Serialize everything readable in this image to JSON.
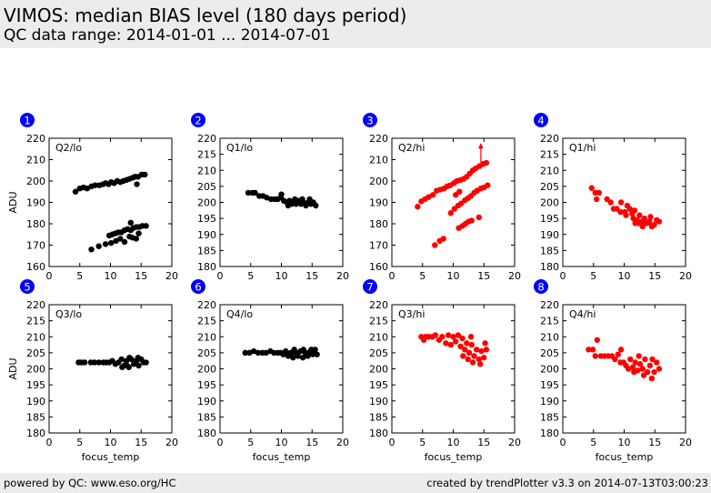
{
  "header": {
    "title": "VIMOS: median BIAS level (180 days period)",
    "subtitle": "QC data range: 2014-01-01 ... 2014-07-01"
  },
  "footer": {
    "left": "powered by QC: www.eso.org/HC",
    "right": "created by trendPlotter v3.3 on 2014-07-13T03:00:23"
  },
  "colors": {
    "black_series": "#000000",
    "red_series": "#ff0000",
    "badge": "#0000ff"
  },
  "chart_data": [
    {
      "type": "scatter",
      "number": "1",
      "label": "Q2/lo",
      "color": "black",
      "xlabel": "",
      "ylabel": "ADU",
      "xlim": [
        0,
        20
      ],
      "ylim": [
        160,
        220
      ],
      "xticks": [
        0,
        5,
        10,
        15,
        20
      ],
      "yticks": [
        160,
        170,
        180,
        190,
        200,
        210,
        220
      ],
      "points": [
        [
          4.3,
          195
        ],
        [
          5,
          196.5
        ],
        [
          5.6,
          197
        ],
        [
          6.2,
          196.5
        ],
        [
          6.9,
          197.5
        ],
        [
          7.5,
          198
        ],
        [
          8.2,
          198
        ],
        [
          8.8,
          198.5
        ],
        [
          9.2,
          199
        ],
        [
          9.7,
          198.5
        ],
        [
          10.1,
          199.5
        ],
        [
          10.6,
          199
        ],
        [
          11.1,
          200
        ],
        [
          11.6,
          199.5
        ],
        [
          12.1,
          200
        ],
        [
          12.6,
          200.5
        ],
        [
          13.1,
          201
        ],
        [
          13.6,
          201.5
        ],
        [
          14,
          202
        ],
        [
          14.5,
          202
        ],
        [
          15.1,
          203
        ],
        [
          15.6,
          203
        ],
        [
          14.3,
          198.5
        ],
        [
          6.9,
          168
        ],
        [
          8.1,
          169.5
        ],
        [
          9.2,
          170.5
        ],
        [
          10.1,
          171
        ],
        [
          10.9,
          172
        ],
        [
          11.6,
          173
        ],
        [
          12.3,
          171.5
        ],
        [
          13.1,
          174
        ],
        [
          13.6,
          173.5
        ],
        [
          14.2,
          173
        ],
        [
          14.6,
          175.5
        ],
        [
          9.8,
          174.5
        ],
        [
          10.3,
          175
        ],
        [
          10.8,
          175.5
        ],
        [
          11.3,
          176
        ],
        [
          11.8,
          176
        ],
        [
          12.3,
          177
        ],
        [
          12.8,
          177.5
        ],
        [
          13.3,
          177
        ],
        [
          13.7,
          178
        ],
        [
          14.2,
          178.5
        ],
        [
          14.7,
          178.5
        ],
        [
          15.2,
          179
        ],
        [
          15.8,
          179
        ],
        [
          13.3,
          180.5
        ]
      ]
    },
    {
      "type": "scatter",
      "number": "2",
      "label": "Q1/lo",
      "color": "black",
      "xlabel": "",
      "ylabel": "",
      "xlim": [
        0,
        20
      ],
      "ylim": [
        180,
        220
      ],
      "xticks": [
        0,
        5,
        10,
        15,
        20
      ],
      "yticks": [
        180,
        185,
        190,
        195,
        200,
        205,
        210,
        215,
        220
      ],
      "points": [
        [
          4.6,
          203
        ],
        [
          5.3,
          203
        ],
        [
          5.7,
          203
        ],
        [
          6.4,
          202
        ],
        [
          7,
          202
        ],
        [
          7.6,
          201.5
        ],
        [
          8.3,
          201
        ],
        [
          8.9,
          201
        ],
        [
          9.4,
          201
        ],
        [
          9.9,
          201.5
        ],
        [
          10,
          202.5
        ],
        [
          10.4,
          200.5
        ],
        [
          10.9,
          200
        ],
        [
          11.3,
          200.5
        ],
        [
          11.7,
          199.5
        ],
        [
          12,
          200.5
        ],
        [
          12.4,
          199.5
        ],
        [
          12.8,
          200.5
        ],
        [
          13.2,
          199.5
        ],
        [
          13.6,
          200
        ],
        [
          14,
          199
        ],
        [
          14.4,
          200
        ],
        [
          14.8,
          199.5
        ],
        [
          15.2,
          200
        ],
        [
          15.6,
          199
        ],
        [
          11.1,
          199
        ],
        [
          12.2,
          201
        ],
        [
          13.4,
          201
        ],
        [
          14.6,
          201
        ]
      ]
    },
    {
      "type": "scatter",
      "number": "3",
      "label": "Q2/hi",
      "color": "red",
      "xlabel": "",
      "ylabel": "",
      "xlim": [
        0,
        20
      ],
      "ylim": [
        160,
        220
      ],
      "xticks": [
        0,
        5,
        10,
        15,
        20
      ],
      "yticks": [
        160,
        170,
        180,
        190,
        200,
        210,
        220
      ],
      "annotation": "up-arrow at x=14.5",
      "points": [
        [
          4.2,
          188
        ],
        [
          4.8,
          190.5
        ],
        [
          5.4,
          191.5
        ],
        [
          6,
          192.5
        ],
        [
          6.7,
          193.5
        ],
        [
          7.3,
          195.5
        ],
        [
          7.9,
          196
        ],
        [
          8.5,
          196.5
        ],
        [
          9,
          197.5
        ],
        [
          9.5,
          198
        ],
        [
          10.1,
          199
        ],
        [
          10.6,
          200
        ],
        [
          11.2,
          200.5
        ],
        [
          11.7,
          201
        ],
        [
          12.2,
          202
        ],
        [
          12.7,
          203.5
        ],
        [
          13.2,
          205
        ],
        [
          13.7,
          206
        ],
        [
          14.3,
          207
        ],
        [
          14.9,
          208
        ],
        [
          15.4,
          208.5
        ],
        [
          9.6,
          185
        ],
        [
          10.2,
          187
        ],
        [
          10.8,
          188.5
        ],
        [
          11.3,
          189.5
        ],
        [
          11.9,
          191
        ],
        [
          12.4,
          192
        ],
        [
          12.9,
          193
        ],
        [
          13.4,
          194.5
        ],
        [
          13.9,
          195.5
        ],
        [
          14.5,
          196.5
        ],
        [
          15,
          197
        ],
        [
          15.6,
          198
        ],
        [
          7,
          170
        ],
        [
          7.8,
          172
        ],
        [
          8.4,
          173
        ],
        [
          10.9,
          178
        ],
        [
          11.5,
          179
        ],
        [
          12,
          180
        ],
        [
          12.5,
          181
        ],
        [
          13,
          181.5
        ],
        [
          14.2,
          183
        ],
        [
          10.4,
          193.5
        ],
        [
          11,
          195
        ]
      ]
    },
    {
      "type": "scatter",
      "number": "4",
      "label": "Q1/hi",
      "color": "red",
      "xlabel": "",
      "ylabel": "",
      "xlim": [
        0,
        20
      ],
      "ylim": [
        180,
        220
      ],
      "xticks": [
        0,
        5,
        10,
        15,
        20
      ],
      "yticks": [
        180,
        185,
        190,
        195,
        200,
        205,
        210,
        215,
        220
      ],
      "points": [
        [
          4.7,
          204.5
        ],
        [
          5.3,
          203
        ],
        [
          5.9,
          203
        ],
        [
          5.5,
          201
        ],
        [
          7.2,
          201
        ],
        [
          7.8,
          200
        ],
        [
          8.3,
          198
        ],
        [
          8.8,
          198
        ],
        [
          9.5,
          200
        ],
        [
          9.4,
          197
        ],
        [
          10.1,
          197
        ],
        [
          10.5,
          199
        ],
        [
          10.9,
          198
        ],
        [
          11.3,
          196.5
        ],
        [
          11.7,
          197.5
        ],
        [
          11.5,
          195
        ],
        [
          12.1,
          194.5
        ],
        [
          12.5,
          196
        ],
        [
          12.9,
          194
        ],
        [
          13.3,
          195
        ],
        [
          13.7,
          193.5
        ],
        [
          14.1,
          194
        ],
        [
          14.5,
          192.5
        ],
        [
          14.9,
          193
        ],
        [
          15.3,
          194.5
        ],
        [
          15.7,
          194
        ],
        [
          13,
          192.5
        ],
        [
          12.3,
          193.5
        ],
        [
          14.3,
          195.5
        ],
        [
          10.3,
          196
        ],
        [
          11.8,
          193.5
        ]
      ]
    },
    {
      "type": "scatter",
      "number": "5",
      "label": "Q3/lo",
      "color": "black",
      "xlabel": "focus_temp",
      "ylabel": "ADU",
      "xlim": [
        0,
        20
      ],
      "ylim": [
        180,
        220
      ],
      "xticks": [
        0,
        5,
        10,
        15,
        20
      ],
      "yticks": [
        180,
        185,
        190,
        195,
        200,
        205,
        210,
        215,
        220
      ],
      "points": [
        [
          4.8,
          202
        ],
        [
          5.3,
          202
        ],
        [
          5.8,
          202
        ],
        [
          6.8,
          202
        ],
        [
          7.4,
          202
        ],
        [
          8.1,
          202
        ],
        [
          8.8,
          202
        ],
        [
          9.3,
          202
        ],
        [
          9.8,
          202
        ],
        [
          10.3,
          202.5
        ],
        [
          10.8,
          201.5
        ],
        [
          11.3,
          202
        ],
        [
          11.8,
          203
        ],
        [
          12.2,
          201
        ],
        [
          12.6,
          202.5
        ],
        [
          13,
          200.5
        ],
        [
          13.4,
          203
        ],
        [
          13.8,
          201.5
        ],
        [
          14.2,
          202.5
        ],
        [
          14.6,
          201
        ],
        [
          15,
          203
        ],
        [
          15.4,
          202
        ],
        [
          15.8,
          202
        ],
        [
          11.9,
          200.5
        ],
        [
          13.1,
          203.5
        ],
        [
          14.5,
          203.5
        ],
        [
          12.7,
          201
        ]
      ]
    },
    {
      "type": "scatter",
      "number": "6",
      "label": "Q4/lo",
      "color": "black",
      "xlabel": "focus_temp",
      "ylabel": "",
      "xlim": [
        0,
        20
      ],
      "ylim": [
        180,
        220
      ],
      "xticks": [
        0,
        5,
        10,
        15,
        20
      ],
      "yticks": [
        180,
        185,
        190,
        195,
        200,
        205,
        210,
        215,
        220
      ],
      "points": [
        [
          4.1,
          205
        ],
        [
          4.8,
          205
        ],
        [
          5.5,
          205.5
        ],
        [
          6.2,
          205
        ],
        [
          6.9,
          205
        ],
        [
          7.5,
          205
        ],
        [
          8.2,
          205.5
        ],
        [
          8.8,
          205
        ],
        [
          9.4,
          205
        ],
        [
          9.9,
          205
        ],
        [
          10.3,
          204.5
        ],
        [
          10.7,
          205.5
        ],
        [
          11.1,
          204
        ],
        [
          11.5,
          205
        ],
        [
          11.9,
          203.5
        ],
        [
          12.3,
          205
        ],
        [
          12.7,
          204
        ],
        [
          13.1,
          205.5
        ],
        [
          13.5,
          203.5
        ],
        [
          13.9,
          205
        ],
        [
          14.3,
          204
        ],
        [
          14.7,
          205.5
        ],
        [
          15.1,
          204.5
        ],
        [
          15.5,
          206
        ],
        [
          15.8,
          204.5
        ],
        [
          12.1,
          206
        ],
        [
          13.6,
          206
        ],
        [
          14.9,
          206
        ]
      ]
    },
    {
      "type": "scatter",
      "number": "7",
      "label": "Q3/hi",
      "color": "red",
      "xlabel": "focus_temp",
      "ylabel": "",
      "xlim": [
        0,
        20
      ],
      "ylim": [
        180,
        220
      ],
      "xticks": [
        0,
        5,
        10,
        15,
        20
      ],
      "yticks": [
        180,
        185,
        190,
        195,
        200,
        205,
        210,
        215,
        220
      ],
      "points": [
        [
          4.8,
          210
        ],
        [
          5.5,
          210
        ],
        [
          5.2,
          209
        ],
        [
          6,
          210
        ],
        [
          6.6,
          210
        ],
        [
          7.1,
          210.5
        ],
        [
          7.7,
          209
        ],
        [
          8.2,
          210
        ],
        [
          8.8,
          208
        ],
        [
          9.2,
          210.5
        ],
        [
          9.6,
          207.5
        ],
        [
          10,
          210
        ],
        [
          10.4,
          208.5
        ],
        [
          10.8,
          210.5
        ],
        [
          11.2,
          207
        ],
        [
          11.5,
          209.5
        ],
        [
          11.9,
          206
        ],
        [
          12.2,
          208
        ],
        [
          12.6,
          205
        ],
        [
          13,
          207.5
        ],
        [
          13.4,
          204
        ],
        [
          13.8,
          206
        ],
        [
          14.2,
          203
        ],
        [
          14.6,
          205.5
        ],
        [
          15,
          203.5
        ],
        [
          15.4,
          206
        ],
        [
          12.4,
          203
        ],
        [
          13.2,
          202
        ],
        [
          14.4,
          201.5
        ],
        [
          11.6,
          204
        ],
        [
          15.2,
          208
        ],
        [
          12.9,
          210
        ]
      ]
    },
    {
      "type": "scatter",
      "number": "8",
      "label": "Q4/hi",
      "color": "red",
      "xlabel": "focus_temp",
      "ylabel": "",
      "xlim": [
        0,
        20
      ],
      "ylim": [
        180,
        220
      ],
      "xticks": [
        0,
        5,
        10,
        15,
        20
      ],
      "yticks": [
        180,
        185,
        190,
        195,
        200,
        205,
        210,
        215,
        220
      ],
      "points": [
        [
          4.2,
          206
        ],
        [
          4.9,
          206
        ],
        [
          5.6,
          209
        ],
        [
          5.3,
          204
        ],
        [
          6.2,
          204
        ],
        [
          6.8,
          204
        ],
        [
          7.4,
          204
        ],
        [
          8,
          204
        ],
        [
          8.5,
          203
        ],
        [
          9,
          204.5
        ],
        [
          9.4,
          202
        ],
        [
          9.5,
          206
        ],
        [
          9.9,
          202
        ],
        [
          10.3,
          201
        ],
        [
          10.7,
          200
        ],
        [
          11,
          203
        ],
        [
          11.4,
          200.5
        ],
        [
          11.8,
          202
        ],
        [
          12.2,
          199.5
        ],
        [
          12.6,
          201.5
        ],
        [
          13,
          200
        ],
        [
          13.4,
          203
        ],
        [
          13.8,
          199
        ],
        [
          14.2,
          201
        ],
        [
          14.5,
          197
        ],
        [
          14.9,
          199
        ],
        [
          15.3,
          202
        ],
        [
          15.7,
          200
        ],
        [
          13.2,
          198
        ],
        [
          12.4,
          204
        ],
        [
          14.6,
          203
        ],
        [
          11.6,
          199
        ]
      ]
    }
  ]
}
